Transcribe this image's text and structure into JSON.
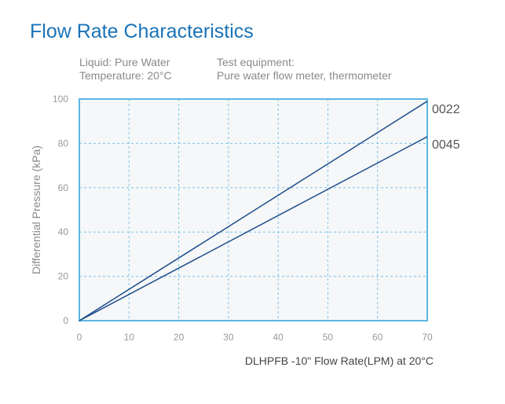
{
  "header": {
    "title": "Flow Rate Characteristics",
    "liquid": "Liquid: Pure Water",
    "temperature": "Temperature: 20°C",
    "equipment_title": "Test equipment:",
    "equipment": "Pure water flow meter, thermometer"
  },
  "colors": {
    "title": "#1a73b7",
    "frame": "#5bb7e0",
    "grid": "#7fc4ea",
    "line": "#1f4e8c",
    "plot_bg": "#f5f7f8"
  },
  "chart_data": {
    "type": "line",
    "title": "Flow Rate Characteristics",
    "xlabel": "DLHPFB -10\" Flow Rate(LPM) at 20°C",
    "ylabel": "Differential Pressure (kPa)",
    "xlim": [
      0,
      70
    ],
    "ylim": [
      0,
      100
    ],
    "xticks": [
      0,
      10,
      20,
      30,
      40,
      50,
      60,
      70
    ],
    "yticks": [
      0,
      20,
      40,
      60,
      80,
      100
    ],
    "grid": true,
    "series": [
      {
        "name": "0022",
        "x": [
          0,
          70
        ],
        "y": [
          0,
          99
        ]
      },
      {
        "name": "0045",
        "x": [
          0,
          70
        ],
        "y": [
          0,
          83
        ]
      }
    ]
  }
}
